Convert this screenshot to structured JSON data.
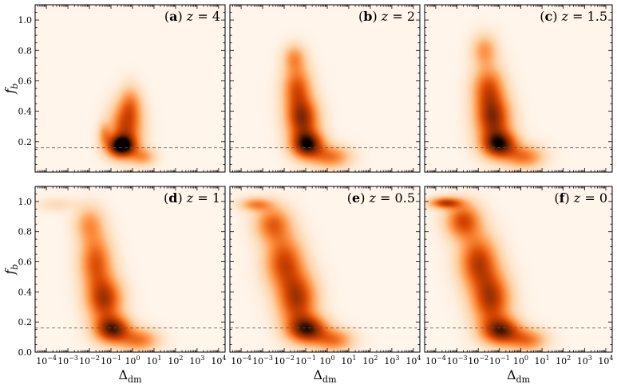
{
  "figure": {
    "panel_labels": [
      {
        "letter": "a",
        "redshift": "4"
      },
      {
        "letter": "b",
        "redshift": "2"
      },
      {
        "letter": "c",
        "redshift": "1.5"
      },
      {
        "letter": "d",
        "redshift": "1"
      },
      {
        "letter": "e",
        "redshift": "0.5"
      },
      {
        "letter": "f",
        "redshift": "0"
      }
    ]
  },
  "chart_data": {
    "type": "heatmap",
    "xlabel": "Δ_dm",
    "ylabel": "f_b",
    "x_scale": "log",
    "xlim": [
      3e-05,
      20000
    ],
    "ylim": [
      0.0,
      1.1
    ],
    "x_ticks": [
      {
        "value": 0.0001,
        "base": "10",
        "exp": "−4"
      },
      {
        "value": 0.001,
        "base": "10",
        "exp": "−3"
      },
      {
        "value": 0.01,
        "base": "10",
        "exp": "−2"
      },
      {
        "value": 0.1,
        "base": "10",
        "exp": "−1"
      },
      {
        "value": 1,
        "base": "10",
        "exp": "0"
      },
      {
        "value": 10,
        "base": "10",
        "exp": "1"
      },
      {
        "value": 100,
        "base": "10",
        "exp": "2"
      },
      {
        "value": 1000,
        "base": "10",
        "exp": "3"
      },
      {
        "value": 10000,
        "base": "10",
        "exp": "4"
      }
    ],
    "y_ticks_top_row": [
      "0.2",
      "0.4",
      "0.6",
      "0.8",
      "1.0"
    ],
    "y_ticks_bottom_row": [
      "0.0",
      "0.2",
      "0.4",
      "0.6",
      "0.8",
      "1.0"
    ],
    "reference_line": {
      "y": 0.16
    },
    "colormap": [
      "#fff5eb",
      "#fdd0a2",
      "#fd8d3c",
      "#d94801",
      "#7f2704",
      "#000000"
    ],
    "panels": [
      {
        "id": "a",
        "z": 4,
        "blobs": [
          {
            "x": 0.3,
            "y": 0.17,
            "sx": 0.45,
            "sy": 0.05,
            "w": 1.0
          },
          {
            "x": 0.5,
            "y": 0.3,
            "sx": 0.5,
            "sy": 0.1,
            "w": 0.55
          },
          {
            "x": 0.8,
            "y": 0.45,
            "sx": 0.35,
            "sy": 0.08,
            "w": 0.3
          },
          {
            "x": 3,
            "y": 0.1,
            "sx": 0.4,
            "sy": 0.04,
            "w": 0.3
          },
          {
            "x": 0.05,
            "y": 0.25,
            "sx": 0.2,
            "sy": 0.05,
            "w": 0.25
          }
        ]
      },
      {
        "id": "b",
        "z": 2,
        "blobs": [
          {
            "x": 0.12,
            "y": 0.18,
            "sx": 0.5,
            "sy": 0.06,
            "w": 0.9
          },
          {
            "x": 0.07,
            "y": 0.35,
            "sx": 0.5,
            "sy": 0.09,
            "w": 0.7
          },
          {
            "x": 0.04,
            "y": 0.55,
            "sx": 0.45,
            "sy": 0.1,
            "w": 0.5
          },
          {
            "x": 0.03,
            "y": 0.75,
            "sx": 0.35,
            "sy": 0.06,
            "w": 0.3
          },
          {
            "x": 1.5,
            "y": 0.1,
            "sx": 0.6,
            "sy": 0.05,
            "w": 0.4
          }
        ]
      },
      {
        "id": "c",
        "z": 1.5,
        "blobs": [
          {
            "x": 0.1,
            "y": 0.18,
            "sx": 0.55,
            "sy": 0.06,
            "w": 0.85
          },
          {
            "x": 0.05,
            "y": 0.35,
            "sx": 0.55,
            "sy": 0.1,
            "w": 0.7
          },
          {
            "x": 0.03,
            "y": 0.55,
            "sx": 0.5,
            "sy": 0.1,
            "w": 0.5
          },
          {
            "x": 0.02,
            "y": 0.8,
            "sx": 0.4,
            "sy": 0.07,
            "w": 0.3
          },
          {
            "x": 1.5,
            "y": 0.1,
            "sx": 0.6,
            "sy": 0.05,
            "w": 0.4
          }
        ]
      },
      {
        "id": "d",
        "z": 1,
        "blobs": [
          {
            "x": 0.12,
            "y": 0.15,
            "sx": 0.55,
            "sy": 0.06,
            "w": 0.8
          },
          {
            "x": 0.05,
            "y": 0.35,
            "sx": 0.55,
            "sy": 0.1,
            "w": 0.65
          },
          {
            "x": 0.02,
            "y": 0.6,
            "sx": 0.5,
            "sy": 0.12,
            "w": 0.5
          },
          {
            "x": 0.01,
            "y": 0.85,
            "sx": 0.45,
            "sy": 0.08,
            "w": 0.3
          },
          {
            "x": 0.0003,
            "y": 0.98,
            "sx": 0.6,
            "sy": 0.03,
            "w": 0.1
          },
          {
            "x": 2,
            "y": 0.08,
            "sx": 0.6,
            "sy": 0.05,
            "w": 0.4
          }
        ]
      },
      {
        "id": "e",
        "z": 0.5,
        "blobs": [
          {
            "x": 0.12,
            "y": 0.15,
            "sx": 0.6,
            "sy": 0.06,
            "w": 0.8
          },
          {
            "x": 0.04,
            "y": 0.35,
            "sx": 0.6,
            "sy": 0.12,
            "w": 0.65
          },
          {
            "x": 0.01,
            "y": 0.6,
            "sx": 0.6,
            "sy": 0.12,
            "w": 0.55
          },
          {
            "x": 0.003,
            "y": 0.85,
            "sx": 0.55,
            "sy": 0.08,
            "w": 0.45
          },
          {
            "x": 0.0005,
            "y": 0.98,
            "sx": 0.5,
            "sy": 0.03,
            "w": 0.35
          },
          {
            "x": 2,
            "y": 0.08,
            "sx": 0.6,
            "sy": 0.05,
            "w": 0.4
          }
        ]
      },
      {
        "id": "f",
        "z": 0,
        "blobs": [
          {
            "x": 0.12,
            "y": 0.14,
            "sx": 0.6,
            "sy": 0.06,
            "w": 0.75
          },
          {
            "x": 0.04,
            "y": 0.35,
            "sx": 0.6,
            "sy": 0.12,
            "w": 0.65
          },
          {
            "x": 0.01,
            "y": 0.6,
            "sx": 0.6,
            "sy": 0.12,
            "w": 0.6
          },
          {
            "x": 0.002,
            "y": 0.87,
            "sx": 0.55,
            "sy": 0.08,
            "w": 0.55
          },
          {
            "x": 0.0003,
            "y": 0.99,
            "sx": 0.5,
            "sy": 0.025,
            "w": 0.6
          },
          {
            "x": 2,
            "y": 0.08,
            "sx": 0.6,
            "sy": 0.05,
            "w": 0.4
          }
        ]
      }
    ]
  }
}
